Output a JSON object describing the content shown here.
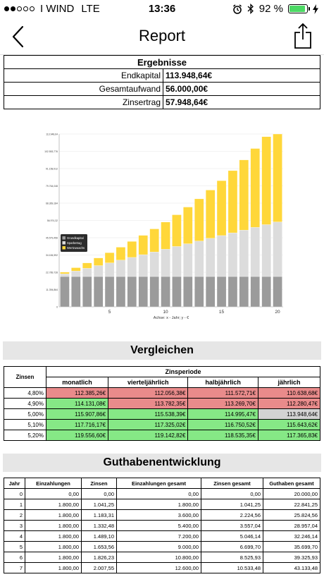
{
  "status_bar": {
    "carrier": "I WIND",
    "network": "LTE",
    "time": "13:36",
    "battery_text": "92 %",
    "battery_level": 0.92,
    "signal_dots_filled": 2,
    "signal_dots_total": 5,
    "icons": [
      "alarm-icon",
      "bluetooth-icon",
      "battery-icon",
      "charging-icon"
    ]
  },
  "nav": {
    "title": "Report",
    "back_icon": "chevron-left-icon",
    "share_icon": "share-icon"
  },
  "ergebnisse": {
    "header": "Ergebnisse",
    "rows": [
      {
        "label": "Endkapital",
        "value": "113.948,64€"
      },
      {
        "label": "Gesamtaufwand",
        "value": "56.000,00€"
      },
      {
        "label": "Zinsertrag",
        "value": "57.948,64€"
      }
    ]
  },
  "chart_data": {
    "type": "bar",
    "stacked": true,
    "categories": [
      1,
      2,
      3,
      4,
      5,
      6,
      7,
      8,
      9,
      10,
      11,
      12,
      13,
      14,
      15,
      16,
      17,
      18,
      19,
      20
    ],
    "x_tick_labels": [
      "5",
      "10",
      "15",
      "20"
    ],
    "y_tick_labels": [
      "0",
      "11.394,864",
      "22.789,728",
      "34.184,592",
      "45.579,456",
      "56.974,32",
      "68.369,184",
      "79.764,048",
      "91.158,912",
      "102.553,776",
      "113.948,64"
    ],
    "ylim": [
      0,
      113948.64
    ],
    "xlabel": "Achse: x - Jahr; y - €",
    "legend_position": "mid-left",
    "series": [
      {
        "name": "Grundkapital",
        "color": "#9b9b9b",
        "values": [
          20000,
          20000,
          20000,
          20000,
          20000,
          20000,
          20000,
          20000,
          20000,
          20000,
          20000,
          20000,
          20000,
          20000,
          20000,
          20000,
          20000,
          20000,
          20000,
          20000
        ]
      },
      {
        "name": "Sparbetrag",
        "color": "#dcdcdc",
        "values": [
          1800,
          3600,
          5400,
          7200,
          9000,
          10800,
          12600,
          14400,
          16200,
          18000,
          19800,
          21600,
          23400,
          25200,
          27000,
          28800,
          30600,
          32400,
          34200,
          36000
        ]
      },
      {
        "name": "Wertzuwachs",
        "color": "#ffd73a",
        "values": [
          1041.25,
          2224.56,
          3557.04,
          5046.14,
          6699.7,
          8525.93,
          10533.48,
          12750,
          15200,
          17900,
          20900,
          24200,
          27800,
          31800,
          36200,
          41000,
          46300,
          52000,
          58000,
          57948.64
        ]
      }
    ]
  },
  "vergleichen": {
    "title": "Vergleichen",
    "zinsen_header": "Zinsen",
    "periode_header": "Zinsperiode",
    "periods": [
      "monatlich",
      "vierteljährlich",
      "halbjährlich",
      "jährlich"
    ],
    "rows": [
      {
        "rate": "4,80%",
        "values": [
          "112.385,26€",
          "112.056,38€",
          "111.572,71€",
          "110.638,68€"
        ],
        "colors": [
          "red",
          "red",
          "red",
          "red"
        ]
      },
      {
        "rate": "4,90%",
        "values": [
          "114.131,08€",
          "113.782,35€",
          "113.269,70€",
          "112.280,47€"
        ],
        "colors": [
          "green",
          "red",
          "red",
          "red"
        ]
      },
      {
        "rate": "5,00%",
        "values": [
          "115.907,86€",
          "115.538,39€",
          "114.995,47€",
          "113.948,64€"
        ],
        "colors": [
          "green",
          "green",
          "green",
          "grey"
        ]
      },
      {
        "rate": "5,10%",
        "values": [
          "117.716,17€",
          "117.325,02€",
          "116.750,52€",
          "115.643,62€"
        ],
        "colors": [
          "green",
          "green",
          "green",
          "green"
        ]
      },
      {
        "rate": "5,20%",
        "values": [
          "119.556,60€",
          "119.142,82€",
          "118.535,35€",
          "117.365,83€"
        ],
        "colors": [
          "green",
          "green",
          "green",
          "green"
        ]
      }
    ]
  },
  "guthaben": {
    "title": "Guthabenentwicklung",
    "headers": [
      "Jahr",
      "Einzahlungen",
      "Zinsen",
      "Einzahlungen gesamt",
      "Zinsen gesamt",
      "Guthaben gesamt"
    ],
    "rows": [
      [
        "0",
        "0,00",
        "0,00",
        "0,00",
        "0,00",
        "20.000,00"
      ],
      [
        "1",
        "1.800,00",
        "1.041,25",
        "1.800,00",
        "1.041,25",
        "22.841,25"
      ],
      [
        "2",
        "1.800,00",
        "1.183,31",
        "3.600,00",
        "2.224,56",
        "25.824,56"
      ],
      [
        "3",
        "1.800,00",
        "1.332,48",
        "5.400,00",
        "3.557,04",
        "28.957,04"
      ],
      [
        "4",
        "1.800,00",
        "1.489,10",
        "7.200,00",
        "5.046,14",
        "32.246,14"
      ],
      [
        "5",
        "1.800,00",
        "1.653,56",
        "9.000,00",
        "6.699,70",
        "35.699,70"
      ],
      [
        "6",
        "1.800,00",
        "1.826,23",
        "10.800,00",
        "8.525,93",
        "39.325,93"
      ],
      [
        "7",
        "1.800,00",
        "2.007,55",
        "12.600,00",
        "10.533,48",
        "43.133,48"
      ]
    ]
  }
}
